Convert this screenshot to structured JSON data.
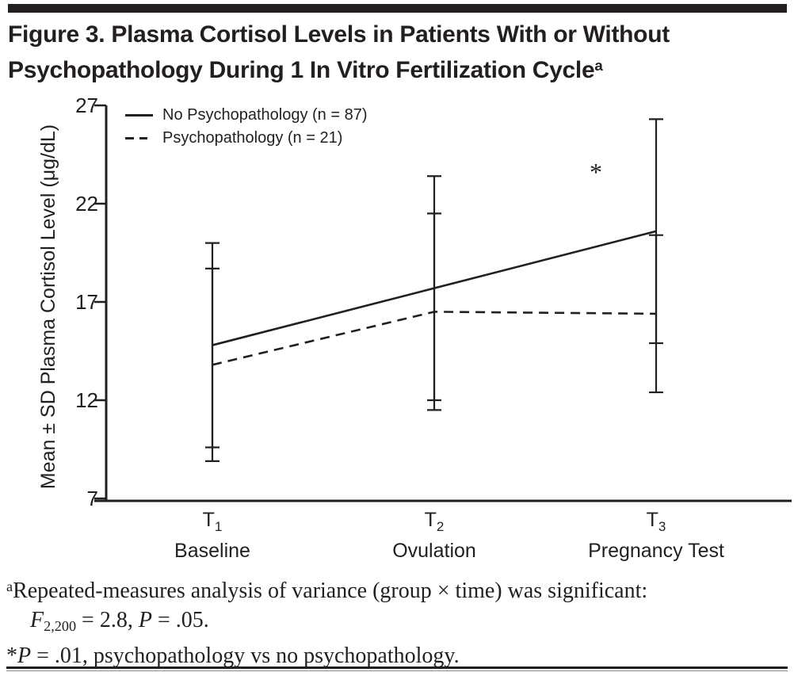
{
  "colors": {
    "ink": "#231f20",
    "background": "#ffffff",
    "rule_gray": "#8c8c8c"
  },
  "title": {
    "line1": "Figure 3. Plasma Cortisol Levels in Patients With or Without",
    "line2": "Psychopathology During 1 In Vitro Fertilization Cycle",
    "superscript": "a"
  },
  "chart_data": {
    "type": "line",
    "title": "",
    "ylabel": "Mean ± SD Plasma Cortisol Level (μg/dL)",
    "ylim": [
      7,
      27
    ],
    "yticks": [
      27,
      22,
      17,
      12,
      7
    ],
    "grid": false,
    "legend_position": "top-left inside plot",
    "error_bars": "mean ± SD, capped",
    "categories": [
      {
        "tick": "T",
        "sub": "1",
        "label": "Baseline"
      },
      {
        "tick": "T",
        "sub": "2",
        "label": "Ovulation"
      },
      {
        "tick": "T",
        "sub": "3",
        "label": "Pregnancy Test"
      }
    ],
    "series": [
      {
        "name": "No Psychopathology (n = 87)",
        "line_style": "solid",
        "means": [
          14.8,
          17.7,
          20.6
        ],
        "sd": [
          5.2,
          5.7,
          5.7
        ]
      },
      {
        "name": "Psychopathology (n = 21)",
        "line_style": "dashed",
        "means": [
          13.8,
          16.5,
          16.4
        ],
        "sd": [
          4.9,
          5.0,
          4.0
        ]
      }
    ],
    "annotation": {
      "text": "*",
      "y_value": 23.6,
      "near_category_index": 2
    }
  },
  "footnotes": {
    "note_a": {
      "sup": "a",
      "line1": "Repeated-measures analysis of variance (group × time) was significant:",
      "stat_f": "F",
      "stat_f_sub": "2,200",
      "stat_f_rest": " = 2.8, ",
      "stat_p": "P",
      "stat_p_rest": " = .05."
    },
    "note_star": {
      "marker": "*",
      "p": "P",
      "rest": " = .01, psychopathology vs no psychopathology."
    }
  }
}
